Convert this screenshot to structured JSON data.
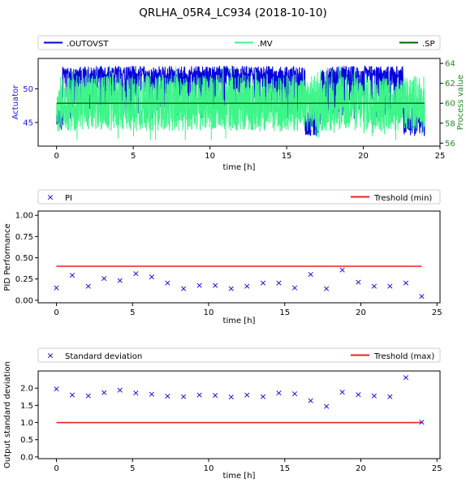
{
  "title": "QRLHA_05R4_LC934 (2018-10-10)",
  "colors": {
    "outovst": "#0000dd",
    "mv": "#3ef58a",
    "sp": "#006400",
    "marker": "#0000cc",
    "threshold": "#e8221c",
    "actuator_label": "#1a1adf",
    "process_label": "#228b22"
  },
  "chart_data": [
    {
      "type": "line",
      "legend_placement": "top (above plot, full width)",
      "xlabel": "time [h]",
      "ylabel_left": "Actuator",
      "ylabel_right": "Process value",
      "xlim": [
        -1.2,
        25
      ],
      "ylim_left": [
        41.5,
        54.5
      ],
      "ylim_right": [
        55.7,
        64.5
      ],
      "xticks": [
        "0",
        "5",
        "10",
        "15",
        "20",
        "25"
      ],
      "yticks_left": [
        "45",
        "50"
      ],
      "yticks_right": [
        "56",
        "58",
        "60",
        "62",
        "64"
      ],
      "series": [
        {
          "name": ".OUTOVST",
          "axis": "left",
          "approx_band": [
            44.5,
            53.0
          ],
          "note": "noisy signal over 0-24 h"
        },
        {
          "name": ".MV",
          "axis": "right",
          "approx_band": [
            56.5,
            63.0
          ],
          "note": "noisy signal over 0-24 h"
        },
        {
          "name": ".SP",
          "axis": "right",
          "x": [
            0,
            24
          ],
          "y": [
            60,
            60
          ]
        }
      ]
    },
    {
      "type": "scatter",
      "legend_placement": "top (above plot, full width)",
      "xlabel": "time [h]",
      "ylabel": "PID Performance",
      "xlim": [
        -1.2,
        25.2
      ],
      "ylim": [
        -0.03,
        1.05
      ],
      "xticks": [
        "0",
        "5",
        "10",
        "15",
        "20",
        "25"
      ],
      "yticks": [
        "0.00",
        "0.25",
        "0.50",
        "0.75",
        "1.00"
      ],
      "series": [
        {
          "name": "PI",
          "x": [
            0,
            1.04,
            2.09,
            3.13,
            4.17,
            5.22,
            6.26,
            7.3,
            8.35,
            9.39,
            10.43,
            11.48,
            12.52,
            13.57,
            14.61,
            15.65,
            16.7,
            17.74,
            18.78,
            19.83,
            20.87,
            21.91,
            22.96,
            24.0
          ],
          "y": [
            0.15,
            0.3,
            0.17,
            0.26,
            0.24,
            0.32,
            0.28,
            0.21,
            0.14,
            0.18,
            0.18,
            0.14,
            0.17,
            0.21,
            0.21,
            0.15,
            0.31,
            0.14,
            0.36,
            0.22,
            0.17,
            0.17,
            0.21,
            0.05
          ]
        },
        {
          "name": "Treshold (min)",
          "type": "line",
          "x": [
            0,
            24
          ],
          "y": [
            0.4,
            0.4
          ]
        }
      ]
    },
    {
      "type": "scatter",
      "legend_placement": "top (above plot, full width)",
      "xlabel": "time [h]",
      "ylabel": "Output standard deviation",
      "xlim": [
        -1.2,
        25.2
      ],
      "ylim": [
        -0.05,
        2.5
      ],
      "xticks": [
        "0",
        "5",
        "10",
        "15",
        "20",
        "25"
      ],
      "yticks": [
        "0.0",
        "0.5",
        "1.0",
        "1.5",
        "2.0"
      ],
      "series": [
        {
          "name": "Standard deviation",
          "x": [
            0,
            1.04,
            2.09,
            3.13,
            4.17,
            5.22,
            6.26,
            7.3,
            8.35,
            9.39,
            10.43,
            11.48,
            12.52,
            13.57,
            14.61,
            15.65,
            16.7,
            17.74,
            18.78,
            19.83,
            20.87,
            21.91,
            22.96,
            24.0
          ],
          "y": [
            1.99,
            1.81,
            1.79,
            1.89,
            1.96,
            1.88,
            1.84,
            1.78,
            1.77,
            1.81,
            1.8,
            1.76,
            1.82,
            1.77,
            1.88,
            1.85,
            1.65,
            1.49,
            1.9,
            1.83,
            1.79,
            1.77,
            2.32,
            1.03
          ]
        },
        {
          "name": "Treshold (max)",
          "type": "line",
          "x": [
            0,
            24
          ],
          "y": [
            1.0,
            1.0
          ]
        }
      ]
    }
  ]
}
